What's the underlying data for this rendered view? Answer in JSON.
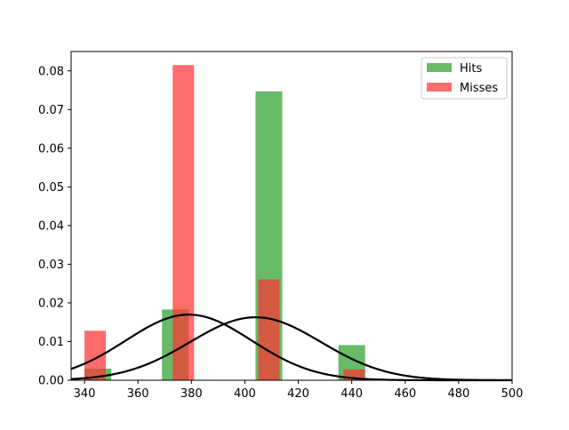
{
  "chart_data": {
    "type": "bar",
    "title": "",
    "xlabel": "",
    "ylabel": "",
    "xlim": [
      335,
      500
    ],
    "ylim": [
      0,
      0.085
    ],
    "xticks": [
      "340",
      "360",
      "380",
      "400",
      "420",
      "440",
      "460",
      "480",
      "500"
    ],
    "yticks": [
      "0.00",
      "0.01",
      "0.02",
      "0.03",
      "0.04",
      "0.05",
      "0.06",
      "0.07",
      "0.08"
    ],
    "grid": false,
    "legend_position": "top-right",
    "series": [
      {
        "name": "Hits",
        "kind": "histogram",
        "color": "#2ca02c",
        "bars": [
          {
            "x0": 340,
            "x1": 350,
            "value": 0.003
          },
          {
            "x0": 369,
            "x1": 379,
            "value": 0.0183
          },
          {
            "x0": 404,
            "x1": 414,
            "value": 0.0747
          },
          {
            "x0": 435,
            "x1": 445,
            "value": 0.0091
          }
        ]
      },
      {
        "name": "Misses",
        "kind": "histogram",
        "color": "#ff3333",
        "bars": [
          {
            "x0": 340,
            "x1": 348,
            "value": 0.0128
          },
          {
            "x0": 373,
            "x1": 381,
            "value": 0.0815
          },
          {
            "x0": 405,
            "x1": 413,
            "value": 0.0261
          },
          {
            "x0": 437,
            "x1": 445,
            "value": 0.0028
          }
        ]
      }
    ],
    "curves": [
      {
        "kind": "normal-pdf",
        "mean": 379,
        "std": 23.5,
        "color": "#000000"
      },
      {
        "kind": "normal-pdf",
        "mean": 404,
        "std": 24.5,
        "color": "#000000"
      }
    ]
  }
}
